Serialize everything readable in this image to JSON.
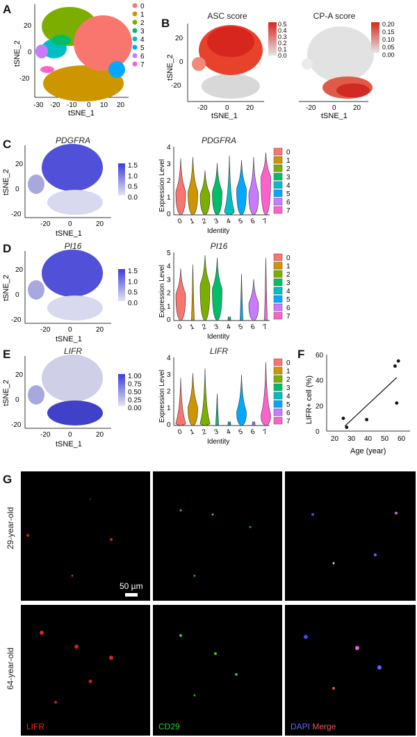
{
  "figure": {
    "panels": {
      "A": {
        "letter": "A",
        "legend": [
          "0",
          "1",
          "2",
          "3",
          "4",
          "5",
          "6",
          "7"
        ],
        "xlabel": "tSNE_1",
        "ylabel": "tSNE_2",
        "xticks": [
          "-30",
          "-20",
          "-10",
          "0",
          "10",
          "20"
        ],
        "yticks": [
          "20",
          "0",
          "-20"
        ]
      },
      "B": {
        "letter": "B",
        "asc": {
          "title": "ASC score",
          "legend": [
            "0.5",
            "0.4",
            "0.3",
            "0.2",
            "0.1",
            "0.0"
          ]
        },
        "cpa": {
          "title": "CP-A score",
          "legend": [
            "0.20",
            "0.15",
            "0.10",
            "0.05",
            "0.00"
          ]
        },
        "xlabel": "tSNE_1",
        "ylabel": "tSNE_2",
        "xticks": [
          "-20",
          "0",
          "20"
        ],
        "yticks": [
          "20",
          "0",
          "-20"
        ]
      },
      "C": {
        "letter": "C",
        "gene": "PDGFRA",
        "legend": [
          "1.5",
          "1.0",
          "0.5",
          "0.0"
        ],
        "xlabel": "tSNE_1",
        "ylabel": "tSNE_2",
        "xticks": [
          "-20",
          "0",
          "20"
        ],
        "yticks": [
          "20",
          "0",
          "-20"
        ],
        "violin_ylabel": "Expression Level",
        "violin_xlabel": "Identity",
        "violin_yticks": [
          "4",
          "3",
          "2",
          "1",
          "0"
        ]
      },
      "D": {
        "letter": "D",
        "gene": "PI16",
        "legend": [
          "1.5",
          "1.0",
          "0.5",
          "0.0"
        ],
        "xlabel": "tSNE_1",
        "ylabel": "tSNE_2",
        "xticks": [
          "-20",
          "0",
          "20"
        ],
        "yticks": [
          "20",
          "0",
          "-20"
        ],
        "violin_ylabel": "Expression Level",
        "violin_xlabel": "Identity",
        "violin_yticks": [
          "5",
          "4",
          "3",
          "2",
          "1",
          "0"
        ]
      },
      "E": {
        "letter": "E",
        "gene": "LIFR",
        "legend": [
          "1.00",
          "0.75",
          "0.50",
          "0.25",
          "0.00"
        ],
        "xlabel": "tSNE_1",
        "ylabel": "tSNE_2",
        "xticks": [
          "-20",
          "0",
          "20"
        ],
        "yticks": [
          "20",
          "0",
          "-20"
        ],
        "violin_ylabel": "Expression Level",
        "violin_xlabel": "Identity",
        "violin_yticks": [
          "4",
          "3",
          "2",
          "1",
          "0"
        ]
      },
      "F": {
        "letter": "F",
        "xlabel": "Age (year)",
        "ylabel": "LIFR+ cell (%)",
        "xticks": [
          "20",
          "30",
          "40",
          "50",
          "60"
        ],
        "yticks": [
          "60",
          "40",
          "20",
          "0"
        ]
      },
      "G": {
        "letter": "G",
        "row1": "29-year-old",
        "row2": "64-year-old",
        "scale": "50 µm",
        "ch_lifr": "LIFR",
        "ch_cd29": "CD29",
        "ch_dapi": "DAPI",
        "ch_merge": "Merge"
      }
    },
    "identities": [
      "0",
      "1",
      "2",
      "3",
      "4",
      "5",
      "6",
      "7"
    ],
    "cluster_colors": [
      "#F8766D",
      "#CD9600",
      "#7CAE00",
      "#00BE67",
      "#00BFC4",
      "#00A9FF",
      "#C77CFF",
      "#FF61CC"
    ]
  },
  "chart_data": [
    {
      "type": "scatter",
      "panel": "F",
      "xlabel": "Age (year)",
      "ylabel": "LIFR+ cell (%)",
      "xlim": [
        15,
        65
      ],
      "ylim": [
        0,
        60
      ],
      "points": [
        [
          25,
          10
        ],
        [
          27,
          3
        ],
        [
          39,
          9
        ],
        [
          56,
          51
        ],
        [
          57,
          22
        ],
        [
          58,
          55
        ]
      ],
      "fit_line": [
        [
          26,
          4
        ],
        [
          57,
          42
        ]
      ]
    },
    {
      "type": "violin",
      "panel": "C",
      "gene": "PDGFRA",
      "categories": [
        "0",
        "1",
        "2",
        "3",
        "4",
        "5",
        "6",
        "7"
      ],
      "ylim": [
        0,
        4.5
      ]
    },
    {
      "type": "violin",
      "panel": "D",
      "gene": "PI16",
      "categories": [
        "0",
        "1",
        "2",
        "3",
        "4",
        "5",
        "6",
        "7"
      ],
      "ylim": [
        0,
        5
      ]
    },
    {
      "type": "violin",
      "panel": "E",
      "gene": "LIFR",
      "categories": [
        "0",
        "1",
        "2",
        "3",
        "4",
        "5",
        "6",
        "7"
      ],
      "ylim": [
        0,
        4.2
      ]
    }
  ]
}
